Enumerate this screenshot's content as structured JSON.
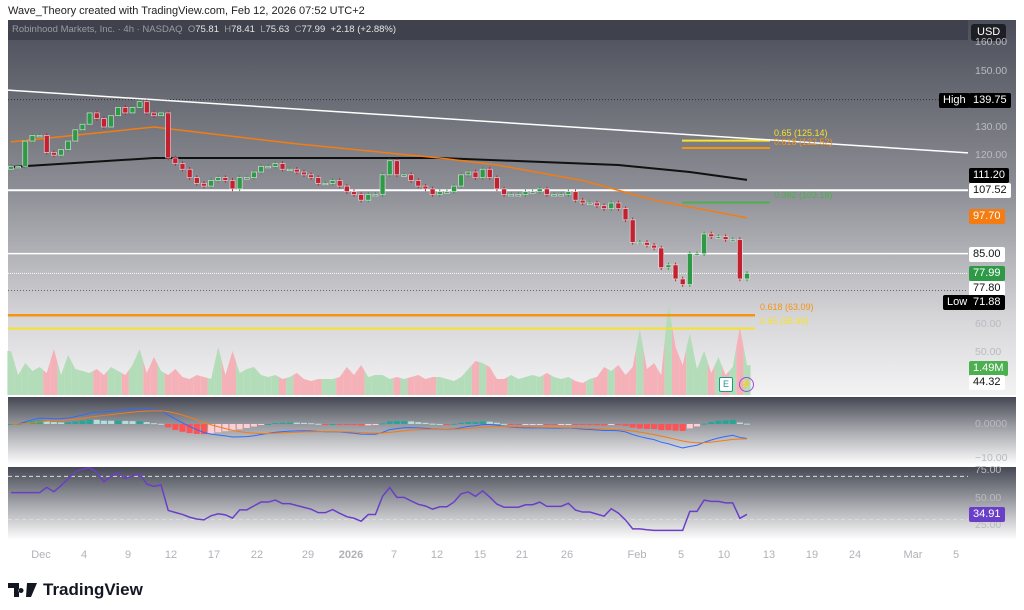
{
  "credit": "Wave_Theory created with TradingView.com, Feb 12, 2026 07:52 UTC+2",
  "header": {
    "symbol": "Robinhood Markets, Inc. · 4h · NASDAQ",
    "open_label": "O",
    "open": "75.81",
    "high_label": "H",
    "high": "78.41",
    "low_label": "L",
    "low": "75.63",
    "close_label": "C",
    "close": "77.99",
    "change": "+2.18 (+2.88%)"
  },
  "currency": "USD",
  "price_axis": [
    "160.00",
    "150.00",
    "130.00",
    "120.00",
    "60.00",
    "50.00"
  ],
  "markers": {
    "high": {
      "label": "High",
      "value": "139.75"
    },
    "low": {
      "label": "Low",
      "value": "71.88"
    },
    "ema_black": "111.20",
    "level_107": "107.52",
    "ema_orange": "97.70",
    "level_85": "85.00",
    "last_price": "77.99",
    "prev_level": "77.80",
    "volume_last": "1.49M",
    "vol_axis": "44.32"
  },
  "fib_labels": {
    "f065_top": "0.65 (125.14)",
    "f0618_top": "0.618 (122.52)",
    "f0382": "0.382 (103.18)",
    "f0618_bottom": "0.618 (63.09)",
    "f065_bottom": "0.65 (58.38)"
  },
  "colors": {
    "up": "#2e9a47",
    "down": "#c3212f",
    "vol_up": "#b3dcb9",
    "vol_down": "#f4b1b8",
    "ema_fast": "#f57c10",
    "ema_slow": "#111111",
    "trendline": "#ffffff",
    "fib_yellow": "#f7e12a",
    "fib_orange": "#f7930f",
    "fib_green": "#4caf50",
    "rsi": "#6a3fc7",
    "macd": "#2f6bff",
    "signal": "#f57c10"
  },
  "macd_axis": [
    "0.0000",
    "−10.00"
  ],
  "rsi_axis": [
    "75.00",
    "50.00",
    "25.00"
  ],
  "rsi_last": "34.91",
  "date_axis": [
    "Dec",
    "4",
    "9",
    "12",
    "17",
    "22",
    "29",
    "2026",
    "7",
    "12",
    "15",
    "21",
    "26",
    "Feb",
    "5",
    "10",
    "13",
    "19",
    "24",
    "Mar",
    "5"
  ],
  "brand": "TradingView",
  "events": {
    "earnings": "E"
  },
  "chart_data": {
    "type": "candlestick",
    "interval": "4h",
    "y_range": [
      40,
      165
    ],
    "closes": [
      116,
      116,
      125,
      127,
      127,
      121,
      120,
      122,
      125,
      129,
      131,
      135,
      133,
      130,
      134,
      137,
      135,
      137,
      139,
      135,
      134,
      135,
      119,
      117,
      115,
      112,
      110,
      109,
      111,
      112,
      111,
      108,
      112,
      112,
      114,
      116,
      116,
      117,
      115,
      115,
      114,
      113,
      112,
      110,
      110,
      111,
      109,
      107,
      106,
      104,
      106,
      106,
      113,
      118,
      113,
      113,
      111,
      109,
      108,
      106,
      107,
      107,
      109,
      113,
      114,
      112,
      115,
      112,
      108,
      106,
      106,
      106,
      107,
      107,
      108,
      106,
      106,
      106,
      107,
      104,
      103,
      103,
      102,
      101,
      103,
      101,
      97,
      89,
      89,
      88,
      87,
      80,
      81,
      76,
      74,
      85,
      85,
      92,
      91,
      91,
      90,
      90,
      76,
      78
    ],
    "volume_m": [
      2.2,
      1.0,
      1.6,
      1.2,
      1.4,
      1.1,
      2.3,
      1.0,
      2.0,
      1.3,
      1.2,
      1.1,
      1.3,
      1.0,
      1.4,
      1.2,
      1.0,
      1.5,
      2.3,
      1.1,
      1.9,
      1.2,
      1.0,
      1.3,
      0.9,
      0.8,
      1.0,
      0.9,
      0.8,
      2.4,
      1.0,
      2.2,
      1.1,
      1.3,
      1.4,
      1.0,
      0.9,
      1.0,
      0.8,
      0.9,
      1.1,
      0.8,
      0.7,
      0.8,
      0.8,
      0.8,
      0.9,
      1.4,
      1.0,
      1.5,
      0.9,
      1.0,
      1.0,
      0.8,
      0.9,
      0.8,
      0.9,
      1.0,
      0.8,
      0.9,
      0.9,
      0.8,
      0.7,
      0.9,
      1.3,
      1.7,
      1.6,
      1.4,
      0.8,
      0.8,
      1.0,
      0.8,
      0.9,
      1.0,
      0.9,
      1.1,
      0.9,
      0.8,
      0.9,
      0.7,
      0.6,
      0.8,
      0.9,
      1.4,
      1.2,
      1.5,
      1.0,
      1.4,
      3.3,
      1.3,
      1.6,
      1.0,
      4.6,
      2.4,
      1.5,
      3.1,
      1.3,
      2.2,
      1.1,
      1.9,
      1.0,
      1.4,
      3.4,
      1.49
    ],
    "ema_orange": [
      [
        0,
        124.7
      ],
      [
        20,
        130
      ],
      [
        40,
        124
      ],
      [
        60,
        119
      ],
      [
        68,
        116.5
      ],
      [
        80,
        111
      ],
      [
        90,
        104
      ],
      [
        104,
        97.7
      ]
    ],
    "ema_black": [
      [
        0,
        115.8
      ],
      [
        20,
        119
      ],
      [
        60,
        119
      ],
      [
        70,
        118
      ],
      [
        85,
        116.5
      ],
      [
        95,
        114
      ],
      [
        104,
        111.2
      ]
    ],
    "trendline": [
      [
        0,
        143.1
      ],
      [
        135,
        120.8
      ]
    ],
    "horizontal_levels": [
      107.52,
      85.0,
      139.75,
      71.88,
      77.99
    ],
    "fibonacci": [
      {
        "ratio": 0.65,
        "price": 125.14
      },
      {
        "ratio": 0.618,
        "price": 122.52
      },
      {
        "ratio": 0.382,
        "price": 103.18
      },
      {
        "ratio": 0.618,
        "price": 63.09
      },
      {
        "ratio": 0.65,
        "price": 58.38
      }
    ],
    "indicators": [
      "Volume",
      "MACD",
      "RSI"
    ],
    "rsi_levels": [
      70,
      30
    ]
  }
}
